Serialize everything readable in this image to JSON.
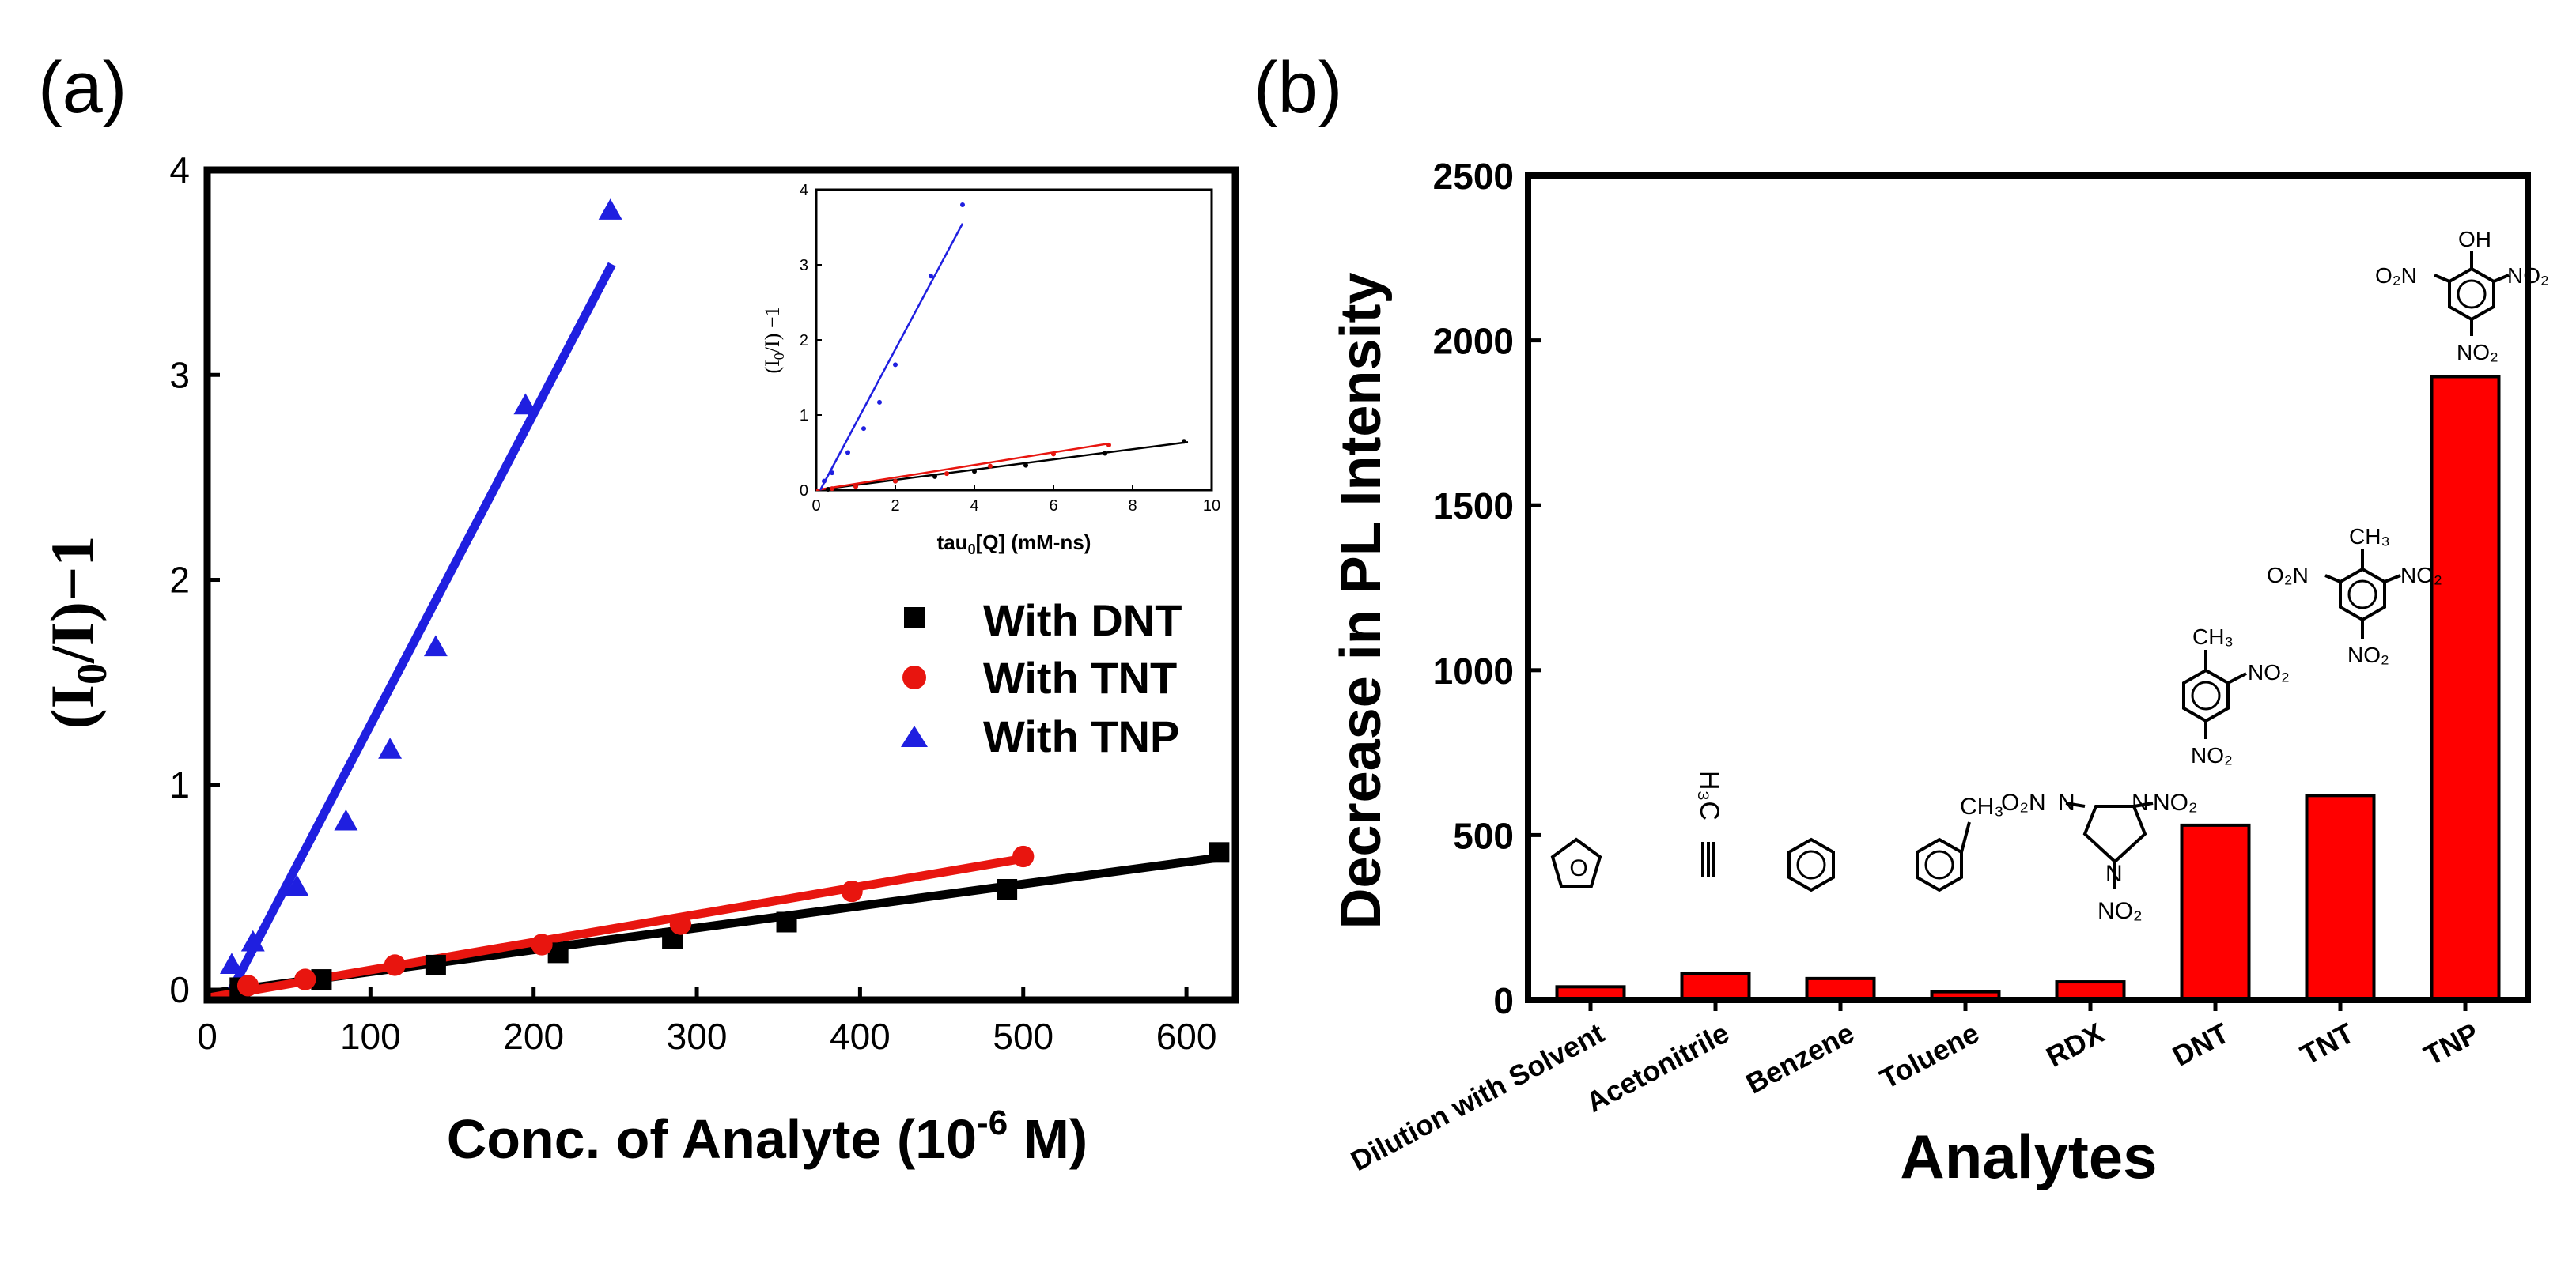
{
  "panels": {
    "a": {
      "tag": "(a)"
    },
    "b": {
      "tag": "(b)"
    }
  },
  "chart_data": [
    {
      "type": "scatter",
      "panel": "(a)",
      "xlabel_main": "Conc. of Analyte (10",
      "xlabel_exp": "-6",
      "xlabel_tail": " M)",
      "ylabel_pre": "(I",
      "ylabel_sub": "0",
      "ylabel_post": "/I)−1",
      "xlim": [
        0,
        630
      ],
      "ylim": [
        -0.05,
        4
      ],
      "xticks": [
        0,
        100,
        200,
        300,
        400,
        500,
        600
      ],
      "yticks": [
        0,
        1,
        2,
        3,
        4
      ],
      "legend_position": "right",
      "series": [
        {
          "name": "With DNT",
          "color": "#000000",
          "marker": "square",
          "x": [
            20,
            70,
            140,
            215,
            285,
            355,
            490,
            620
          ],
          "y": [
            0.01,
            0.05,
            0.12,
            0.18,
            0.25,
            0.33,
            0.49,
            0.67
          ],
          "fit": [
            [
              0,
              -0.02
            ],
            [
              625,
              0.65
            ]
          ]
        },
        {
          "name": "With TNT",
          "color": "#e8150f",
          "marker": "circle",
          "x": [
            25,
            60,
            115,
            205,
            290,
            395,
            500
          ],
          "y": [
            0.02,
            0.05,
            0.12,
            0.22,
            0.32,
            0.48,
            0.65
          ],
          "fit": [
            [
              0,
              -0.04
            ],
            [
              500,
              0.64
            ]
          ]
        },
        {
          "name": "With TNP",
          "color": "#1f1fe0",
          "marker": "triangle",
          "x": [
            15,
            28,
            55,
            85,
            112,
            140,
            195,
            247
          ],
          "y": [
            0.12,
            0.23,
            0.5,
            0.82,
            1.17,
            1.67,
            2.85,
            3.8
          ],
          "fit": [
            [
              15,
              0.0
            ],
            [
              248,
              3.54
            ]
          ]
        }
      ],
      "inset": {
        "xlabel_pre": "tau",
        "xlabel_sub": "0",
        "xlabel_post": "[Q] (mM-ns)",
        "ylabel_pre": "(I",
        "ylabel_sub": "0",
        "ylabel_post": "/I) −1",
        "xlim": [
          0,
          10
        ],
        "ylim": [
          0,
          4
        ],
        "xticks": [
          0,
          2,
          4,
          6,
          8,
          10
        ],
        "yticks": [
          0,
          1,
          2,
          3,
          4
        ],
        "series": [
          {
            "color": "#000000",
            "x": [
              0.3,
              1.0,
              2.0,
              3.0,
              4.0,
              5.3,
              7.3,
              9.3
            ],
            "y": [
              0.01,
              0.05,
              0.12,
              0.18,
              0.25,
              0.33,
              0.49,
              0.65
            ],
            "fit": [
              [
                0,
                0.0
              ],
              [
                9.4,
                0.64
              ]
            ]
          },
          {
            "color": "#e8150f",
            "x": [
              0.4,
              1.0,
              2.0,
              3.3,
              4.4,
              6.0,
              7.4
            ],
            "y": [
              0.02,
              0.05,
              0.12,
              0.22,
              0.32,
              0.48,
              0.6
            ],
            "fit": [
              [
                0,
                0.0
              ],
              [
                7.4,
                0.62
              ]
            ]
          },
          {
            "color": "#1f1fe0",
            "x": [
              0.2,
              0.4,
              0.8,
              1.2,
              1.6,
              2.0,
              2.9,
              3.7
            ],
            "y": [
              0.12,
              0.23,
              0.5,
              0.82,
              1.17,
              1.67,
              2.85,
              3.8
            ],
            "fit": [
              [
                0.1,
                0.0
              ],
              [
                3.7,
                3.55
              ]
            ]
          }
        ]
      }
    },
    {
      "type": "bar",
      "panel": "(b)",
      "xlabel": "Analytes",
      "ylabel": "Decrease in PL Intensity",
      "ylim": [
        0,
        2500
      ],
      "yticks": [
        0,
        500,
        1000,
        1500,
        2000,
        2500
      ],
      "bar_color": "#ff0000",
      "categories": [
        "Dilution with Solvent",
        "Acetonitrile",
        "Benzene",
        "Toluene",
        "RDX",
        "DNT",
        "TNT",
        "TNP"
      ],
      "values": [
        40,
        80,
        65,
        25,
        55,
        530,
        620,
        1890
      ]
    }
  ],
  "structures": {
    "acetonitrile": {
      "h3c": "H₃C"
    },
    "rdx": {
      "n1": "N",
      "n2": "N",
      "n3": "N",
      "no2_left": "O₂N",
      "no2_right": "NO₂",
      "no2_bottom": "NO₂"
    },
    "dnt": {
      "ch3": "CH₃",
      "no2_a": "NO₂",
      "no2_b": "NO₂"
    },
    "tnt": {
      "ch3": "CH₃",
      "no2_left": "O₂N",
      "no2_right": "NO₂",
      "no2_bottom": "NO₂"
    },
    "tnp": {
      "oh": "OH",
      "no2_left": "O₂N",
      "no2_right": "NO₂",
      "no2_bottom": "NO₂"
    },
    "toluene": {
      "ch3": "CH₃"
    }
  }
}
